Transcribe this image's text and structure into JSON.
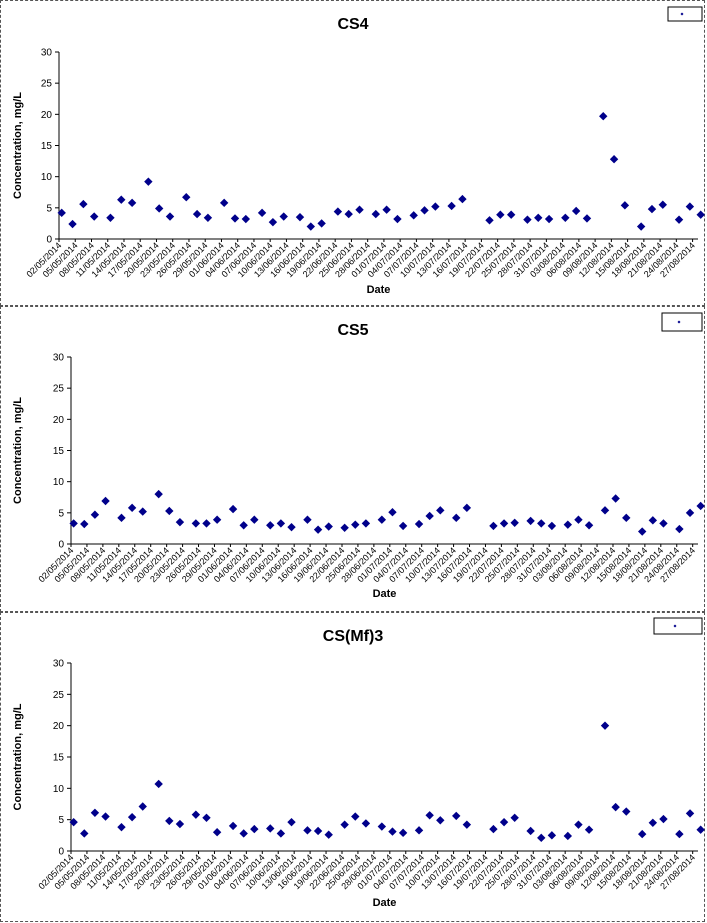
{
  "chart_data": [
    {
      "type": "scatter",
      "title": "CS4",
      "xlabel": "Date",
      "ylabel": "Concentration, mg/L",
      "ylim": [
        0,
        30
      ],
      "yticks": [
        0,
        5,
        10,
        15,
        20,
        25,
        30
      ],
      "grid": false,
      "legend": {
        "placement": "top-right",
        "entries": [
          ""
        ]
      },
      "marker_color": "#00008B",
      "xtick_labels": [
        "02/05/2014",
        "05/05/2014",
        "08/05/2014",
        "11/05/2014",
        "14/05/2014",
        "17/05/2014",
        "20/05/2014",
        "23/05/2014",
        "26/05/2014",
        "29/05/2014",
        "01/06/2014",
        "04/06/2014",
        "07/06/2014",
        "10/06/2014",
        "13/06/2014",
        "16/06/2014",
        "19/06/2014",
        "22/06/2014",
        "25/06/2014",
        "28/06/2014",
        "01/07/2014",
        "04/07/2014",
        "07/07/2014",
        "10/07/2014",
        "13/07/2014",
        "16/07/2014",
        "19/07/2014",
        "22/07/2014",
        "25/07/2014",
        "28/07/2014",
        "31/07/2014",
        "03/08/2014",
        "06/08/2014",
        "09/08/2014",
        "12/08/2014",
        "15/08/2014",
        "18/08/2014",
        "21/08/2014",
        "24/08/2014",
        "27/08/2014"
      ],
      "series": [
        {
          "values": [
            [
              "2014-05-02",
              4.2
            ],
            [
              "2014-05-04",
              2.4
            ],
            [
              "2014-05-06",
              5.6
            ],
            [
              "2014-05-08",
              3.6
            ],
            [
              "2014-05-11",
              3.4
            ],
            [
              "2014-05-13",
              6.3
            ],
            [
              "2014-05-15",
              5.8
            ],
            [
              "2014-05-18",
              9.2
            ],
            [
              "2014-05-20",
              4.9
            ],
            [
              "2014-05-22",
              3.6
            ],
            [
              "2014-05-25",
              6.7
            ],
            [
              "2014-05-27",
              4.0
            ],
            [
              "2014-05-29",
              3.4
            ],
            [
              "2014-06-01",
              5.8
            ],
            [
              "2014-06-03",
              3.3
            ],
            [
              "2014-06-05",
              3.2
            ],
            [
              "2014-06-08",
              4.2
            ],
            [
              "2014-06-10",
              2.7
            ],
            [
              "2014-06-12",
              3.6
            ],
            [
              "2014-06-15",
              3.5
            ],
            [
              "2014-06-17",
              2.0
            ],
            [
              "2014-06-19",
              2.5
            ],
            [
              "2014-06-22",
              4.4
            ],
            [
              "2014-06-24",
              4.0
            ],
            [
              "2014-06-26",
              4.7
            ],
            [
              "2014-06-29",
              4.0
            ],
            [
              "2014-07-01",
              4.7
            ],
            [
              "2014-07-03",
              3.2
            ],
            [
              "2014-07-06",
              3.8
            ],
            [
              "2014-07-08",
              4.6
            ],
            [
              "2014-07-10",
              5.2
            ],
            [
              "2014-07-13",
              5.3
            ],
            [
              "2014-07-15",
              6.4
            ],
            [
              "2014-07-20",
              3.0
            ],
            [
              "2014-07-22",
              3.9
            ],
            [
              "2014-07-24",
              3.9
            ],
            [
              "2014-07-27",
              3.1
            ],
            [
              "2014-07-29",
              3.4
            ],
            [
              "2014-07-31",
              3.2
            ],
            [
              "2014-08-03",
              3.4
            ],
            [
              "2014-08-05",
              4.5
            ],
            [
              "2014-08-07",
              3.3
            ],
            [
              "2014-08-10",
              19.7
            ],
            [
              "2014-08-12",
              12.8
            ],
            [
              "2014-08-14",
              5.4
            ],
            [
              "2014-08-17",
              2.0
            ],
            [
              "2014-08-19",
              4.8
            ],
            [
              "2014-08-21",
              5.5
            ],
            [
              "2014-08-24",
              3.1
            ],
            [
              "2014-08-26",
              5.2
            ],
            [
              "2014-08-28",
              3.9
            ]
          ]
        }
      ]
    },
    {
      "type": "scatter",
      "title": "CS5",
      "xlabel": "Date",
      "ylabel": "Concentration, mg/L",
      "ylim": [
        0,
        30
      ],
      "yticks": [
        0,
        5,
        10,
        15,
        20,
        25,
        30
      ],
      "grid": false,
      "legend": {
        "placement": "top-right",
        "entries": [
          ""
        ]
      },
      "marker_color": "#00008B",
      "xtick_labels": [
        "02/05/2014",
        "05/05/2014",
        "08/05/2014",
        "11/05/2014",
        "14/05/2014",
        "17/05/2014",
        "20/05/2014",
        "23/05/2014",
        "26/05/2014",
        "29/05/2014",
        "01/06/2014",
        "04/06/2014",
        "07/06/2014",
        "10/06/2014",
        "13/06/2014",
        "16/06/2014",
        "19/06/2014",
        "22/06/2014",
        "25/06/2014",
        "28/06/2014",
        "01/07/2014",
        "04/07/2014",
        "07/07/2014",
        "10/07/2014",
        "13/07/2014",
        "16/07/2014",
        "19/07/2014",
        "22/07/2014",
        "25/07/2014",
        "28/07/2014",
        "31/07/2014",
        "03/08/2014",
        "06/08/2014",
        "09/08/2014",
        "12/08/2014",
        "15/08/2014",
        "18/08/2014",
        "21/08/2014",
        "24/08/2014",
        "27/08/2014"
      ],
      "series": [
        {
          "values": [
            [
              "2014-05-02",
              3.3
            ],
            [
              "2014-05-04",
              3.2
            ],
            [
              "2014-05-06",
              4.7
            ],
            [
              "2014-05-08",
              6.9
            ],
            [
              "2014-05-11",
              4.2
            ],
            [
              "2014-05-13",
              5.8
            ],
            [
              "2014-05-15",
              5.2
            ],
            [
              "2014-05-18",
              8.0
            ],
            [
              "2014-05-20",
              5.3
            ],
            [
              "2014-05-22",
              3.5
            ],
            [
              "2014-05-25",
              3.3
            ],
            [
              "2014-05-27",
              3.3
            ],
            [
              "2014-05-29",
              3.9
            ],
            [
              "2014-06-01",
              5.6
            ],
            [
              "2014-06-03",
              3.0
            ],
            [
              "2014-06-05",
              3.9
            ],
            [
              "2014-06-08",
              3.0
            ],
            [
              "2014-06-10",
              3.3
            ],
            [
              "2014-06-12",
              2.7
            ],
            [
              "2014-06-15",
              3.9
            ],
            [
              "2014-06-17",
              2.3
            ],
            [
              "2014-06-19",
              2.8
            ],
            [
              "2014-06-22",
              2.6
            ],
            [
              "2014-06-24",
              3.1
            ],
            [
              "2014-06-26",
              3.3
            ],
            [
              "2014-06-29",
              3.9
            ],
            [
              "2014-07-01",
              5.1
            ],
            [
              "2014-07-03",
              2.9
            ],
            [
              "2014-07-06",
              3.2
            ],
            [
              "2014-07-08",
              4.5
            ],
            [
              "2014-07-10",
              5.4
            ],
            [
              "2014-07-13",
              4.2
            ],
            [
              "2014-07-15",
              5.8
            ],
            [
              "2014-07-20",
              2.9
            ],
            [
              "2014-07-22",
              3.3
            ],
            [
              "2014-07-24",
              3.4
            ],
            [
              "2014-07-27",
              3.7
            ],
            [
              "2014-07-29",
              3.3
            ],
            [
              "2014-07-31",
              2.9
            ],
            [
              "2014-08-03",
              3.1
            ],
            [
              "2014-08-05",
              3.9
            ],
            [
              "2014-08-07",
              3.0
            ],
            [
              "2014-08-10",
              5.4
            ],
            [
              "2014-08-12",
              7.3
            ],
            [
              "2014-08-14",
              4.2
            ],
            [
              "2014-08-17",
              2.0
            ],
            [
              "2014-08-19",
              3.8
            ],
            [
              "2014-08-21",
              3.3
            ],
            [
              "2014-08-24",
              2.4
            ],
            [
              "2014-08-26",
              5.0
            ],
            [
              "2014-08-28",
              6.1
            ]
          ]
        }
      ]
    },
    {
      "type": "scatter",
      "title": "CS(Mf)3",
      "xlabel": "Date",
      "ylabel": "Concentration, mg/L",
      "ylim": [
        0,
        30
      ],
      "yticks": [
        0,
        5,
        10,
        15,
        20,
        25,
        30
      ],
      "grid": false,
      "legend": {
        "placement": "top-right",
        "entries": [
          ""
        ]
      },
      "marker_color": "#00008B",
      "xtick_labels": [
        "02/05/2014",
        "05/05/2014",
        "08/05/2014",
        "11/05/2014",
        "14/05/2014",
        "17/05/2014",
        "20/05/2014",
        "23/05/2014",
        "26/05/2014",
        "29/05/2014",
        "01/06/2014",
        "04/06/2014",
        "07/06/2014",
        "10/06/2014",
        "13/06/2014",
        "16/06/2014",
        "19/06/2014",
        "22/06/2014",
        "25/06/2014",
        "28/06/2014",
        "01/07/2014",
        "04/07/2014",
        "07/07/2014",
        "10/07/2014",
        "13/07/2014",
        "16/07/2014",
        "19/07/2014",
        "22/07/2014",
        "25/07/2014",
        "28/07/2014",
        "31/07/2014",
        "03/08/2014",
        "06/08/2014",
        "09/08/2014",
        "12/08/2014",
        "15/08/2014",
        "18/08/2014",
        "21/08/2014",
        "24/08/2014",
        "27/08/2014"
      ],
      "series": [
        {
          "values": [
            [
              "2014-05-02",
              4.6
            ],
            [
              "2014-05-04",
              2.8
            ],
            [
              "2014-05-06",
              6.1
            ],
            [
              "2014-05-08",
              5.5
            ],
            [
              "2014-05-11",
              3.8
            ],
            [
              "2014-05-13",
              5.4
            ],
            [
              "2014-05-15",
              7.1
            ],
            [
              "2014-05-18",
              10.7
            ],
            [
              "2014-05-20",
              4.8
            ],
            [
              "2014-05-22",
              4.3
            ],
            [
              "2014-05-25",
              5.8
            ],
            [
              "2014-05-27",
              5.3
            ],
            [
              "2014-05-29",
              3.0
            ],
            [
              "2014-06-01",
              4.0
            ],
            [
              "2014-06-03",
              2.8
            ],
            [
              "2014-06-05",
              3.5
            ],
            [
              "2014-06-08",
              3.6
            ],
            [
              "2014-06-10",
              2.8
            ],
            [
              "2014-06-12",
              4.6
            ],
            [
              "2014-06-15",
              3.3
            ],
            [
              "2014-06-17",
              3.2
            ],
            [
              "2014-06-19",
              2.6
            ],
            [
              "2014-06-22",
              4.2
            ],
            [
              "2014-06-24",
              5.5
            ],
            [
              "2014-06-26",
              4.4
            ],
            [
              "2014-06-29",
              3.9
            ],
            [
              "2014-07-01",
              3.1
            ],
            [
              "2014-07-03",
              2.9
            ],
            [
              "2014-07-06",
              3.3
            ],
            [
              "2014-07-08",
              5.7
            ],
            [
              "2014-07-10",
              4.9
            ],
            [
              "2014-07-13",
              5.6
            ],
            [
              "2014-07-15",
              4.2
            ],
            [
              "2014-07-20",
              3.5
            ],
            [
              "2014-07-22",
              4.6
            ],
            [
              "2014-07-24",
              5.3
            ],
            [
              "2014-07-27",
              3.2
            ],
            [
              "2014-07-29",
              2.1
            ],
            [
              "2014-07-31",
              2.5
            ],
            [
              "2014-08-03",
              2.4
            ],
            [
              "2014-08-05",
              4.2
            ],
            [
              "2014-08-07",
              3.4
            ],
            [
              "2014-08-10",
              20.0
            ],
            [
              "2014-08-12",
              7.0
            ],
            [
              "2014-08-14",
              6.3
            ],
            [
              "2014-08-17",
              2.7
            ],
            [
              "2014-08-19",
              4.5
            ],
            [
              "2014-08-21",
              5.1
            ],
            [
              "2014-08-24",
              2.7
            ],
            [
              "2014-08-26",
              6.0
            ],
            [
              "2014-08-28",
              3.4
            ]
          ]
        }
      ]
    }
  ]
}
